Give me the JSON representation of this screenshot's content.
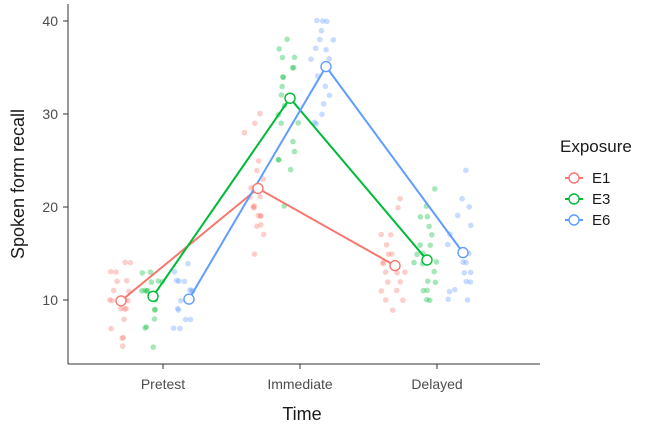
{
  "chart_data": {
    "type": "line",
    "title": "",
    "xlabel": "Time",
    "ylabel": "Spoken form recall",
    "categories": [
      "Pretest",
      "Immediate",
      "Delayed"
    ],
    "ylim": [
      3,
      41
    ],
    "yticks": [
      10,
      20,
      30,
      40
    ],
    "grid": false,
    "legend": {
      "title": "Exposure",
      "placement": "right"
    },
    "series": [
      {
        "name": "E1",
        "color": "#F8766D",
        "values": [
          9.9,
          22.0,
          13.7
        ],
        "points": [
          [
            5,
            6,
            6,
            7,
            8,
            9,
            9,
            9,
            10,
            10,
            10,
            10,
            11,
            11,
            12,
            12,
            13,
            13,
            14,
            14
          ],
          [
            15,
            17,
            18,
            18,
            19,
            19,
            19,
            20,
            20,
            20,
            21,
            21,
            22,
            22,
            23,
            24,
            25,
            28,
            29,
            30
          ],
          [
            9,
            10,
            10,
            11,
            11,
            12,
            12,
            13,
            13,
            13,
            14,
            14,
            14,
            15,
            15,
            16,
            17,
            17,
            20,
            21
          ]
        ]
      },
      {
        "name": "E3",
        "color": "#00BA38",
        "values": [
          10.4,
          31.7,
          14.3
        ],
        "points": [
          [
            5,
            7,
            7,
            8,
            9,
            9,
            10,
            10,
            10,
            11,
            11,
            11,
            11,
            12,
            12,
            12,
            13,
            13
          ],
          [
            20,
            24,
            25,
            25,
            26,
            27,
            29,
            29,
            30,
            31,
            32,
            32,
            33,
            34,
            34,
            35,
            35,
            36,
            36,
            37,
            38
          ],
          [
            10,
            10,
            11,
            11,
            12,
            12,
            13,
            14,
            14,
            14,
            15,
            15,
            16,
            16,
            17,
            18,
            19,
            19,
            20,
            22
          ]
        ]
      },
      {
        "name": "E6",
        "color": "#619CFF",
        "values": [
          10.1,
          35.1,
          15.1
        ],
        "points": [
          [
            7,
            7,
            8,
            8,
            9,
            9,
            10,
            10,
            10,
            11,
            11,
            11,
            12,
            12,
            12,
            13,
            14
          ],
          [
            29,
            29,
            30,
            31,
            32,
            33,
            34,
            35,
            35,
            36,
            36,
            37,
            37,
            38,
            38,
            39,
            40,
            40,
            40
          ],
          [
            10,
            10,
            11,
            11,
            12,
            12,
            13,
            13,
            14,
            14,
            15,
            15,
            16,
            17,
            18,
            19,
            20,
            21,
            24
          ]
        ]
      }
    ]
  }
}
